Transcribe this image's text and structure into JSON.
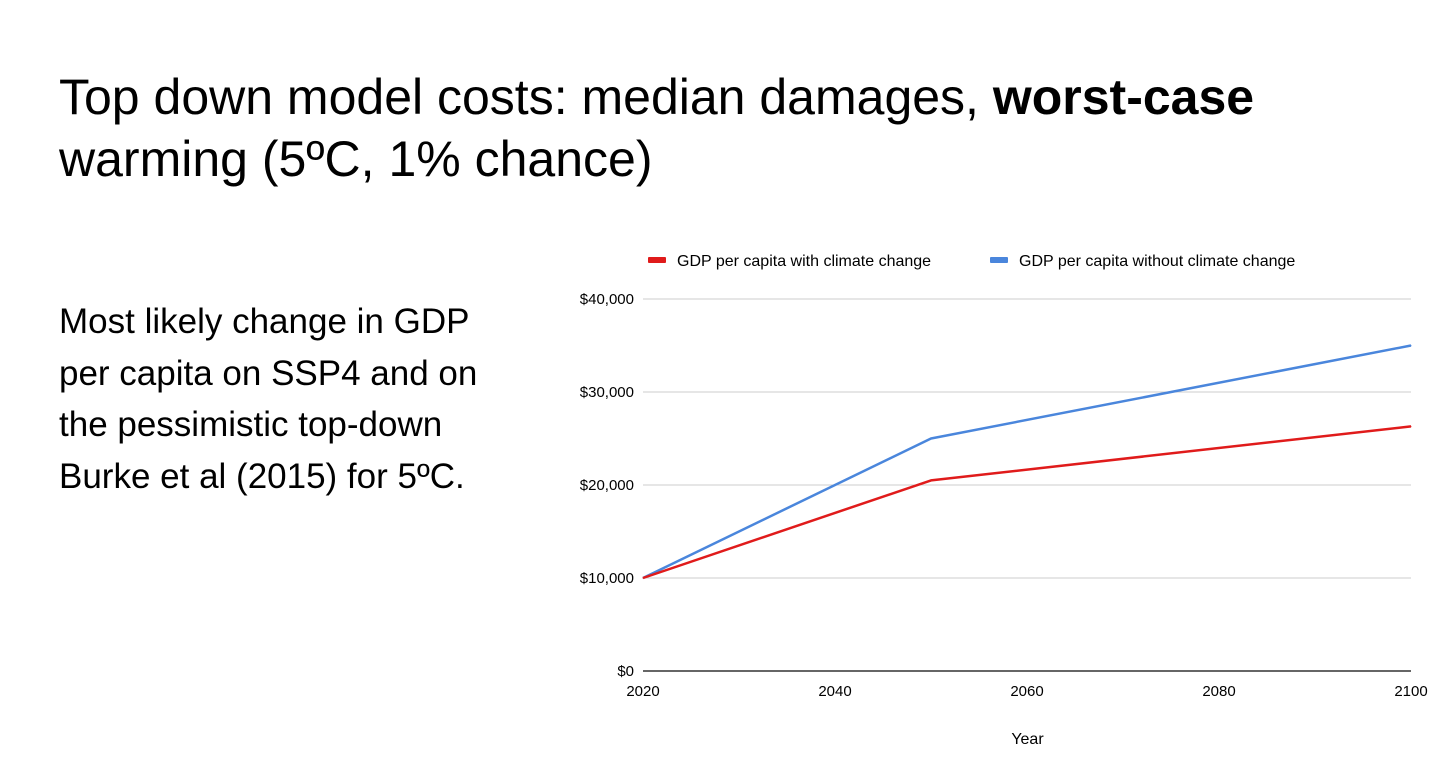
{
  "slide": {
    "title_regular": "Top down model costs: median damages, ",
    "title_bold": "worst-case",
    "title_line2": "warming (5ºC, 1% chance)",
    "body_text": "Most likely change in GDP per capita on SSP4 and on the pessimistic top-down Burke et al (2015) for 5ºC."
  },
  "chart_data": {
    "type": "line",
    "title": "",
    "xlabel": "Year",
    "ylabel": "",
    "x": [
      2020,
      2050,
      2100
    ],
    "xlim": [
      2020,
      2100
    ],
    "ylim": [
      0,
      40000
    ],
    "x_ticks": [
      2020,
      2040,
      2060,
      2080,
      2100
    ],
    "y_ticks": [
      0,
      10000,
      20000,
      30000,
      40000
    ],
    "x_tick_labels": [
      "2020",
      "2040",
      "2060",
      "2080",
      "2100"
    ],
    "y_tick_labels": [
      "$0",
      "$10,000",
      "$20,000",
      "$30,000",
      "$40,000"
    ],
    "grid": true,
    "legend_position": "top",
    "series": [
      {
        "name": "GDP per capita with climate change",
        "color": "#e01b1b",
        "values": [
          10000,
          20500,
          26300
        ]
      },
      {
        "name": "GDP per capita without climate change",
        "color": "#4a86dc",
        "values": [
          10000,
          25000,
          35000
        ]
      }
    ]
  }
}
